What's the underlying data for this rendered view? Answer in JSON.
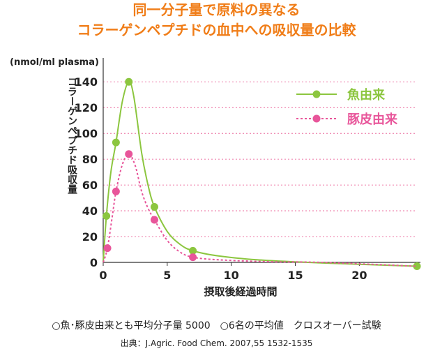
{
  "title_line1": "同一分子量で原料の異なる",
  "title_line2": "コラーゲンペプチドの血中への吸収量の比較",
  "footnote": "○魚･豚皮由来とも平均分子量 5000　○6名の平均値　クロスオーバー試験",
  "source": "出典：J.Agric. Food Chem. 2007,55 1532-1535",
  "colors": {
    "title": "#f07d18",
    "fish": "#8cc63f",
    "pig": "#e8559a",
    "grid": "#e84d8a",
    "axis": "#333333"
  },
  "chart_data": {
    "type": "line",
    "ylabel": "コラーゲンペプチド吸収量",
    "yunit": "(nmol/ml plasma)",
    "xlabel": "摂取後経過時間",
    "xlim": [
      0,
      24.5
    ],
    "ylim": [
      0,
      145
    ],
    "xticks": [
      0,
      5,
      10,
      15,
      20
    ],
    "yticks": [
      0,
      20,
      40,
      60,
      80,
      100,
      120,
      140
    ],
    "grid": true,
    "legend": "top-right",
    "series": [
      {
        "name": "魚由来",
        "color": "#8cc63f",
        "style": "solid",
        "points": [
          [
            0.25,
            36
          ],
          [
            1,
            93
          ],
          [
            2,
            140
          ],
          [
            4,
            43
          ],
          [
            7,
            9
          ],
          [
            24.5,
            -3
          ]
        ],
        "curve": [
          [
            0,
            0
          ],
          [
            0.25,
            36
          ],
          [
            0.6,
            70
          ],
          [
            1,
            93
          ],
          [
            1.5,
            125
          ],
          [
            2,
            140
          ],
          [
            2.4,
            128
          ],
          [
            3,
            85
          ],
          [
            3.5,
            60
          ],
          [
            4,
            43
          ],
          [
            5,
            24
          ],
          [
            6,
            14
          ],
          [
            7,
            9
          ],
          [
            9,
            5
          ],
          [
            12,
            2
          ],
          [
            16,
            0
          ],
          [
            20,
            -1.5
          ],
          [
            24.5,
            -3
          ]
        ]
      },
      {
        "name": "豚皮由来",
        "color": "#e8559a",
        "style": "dotted",
        "points": [
          [
            0.33,
            11
          ],
          [
            1,
            55
          ],
          [
            2,
            84
          ],
          [
            4,
            33
          ],
          [
            7,
            4
          ]
        ],
        "curve": [
          [
            0,
            0
          ],
          [
            0.33,
            11
          ],
          [
            0.7,
            35
          ],
          [
            1,
            55
          ],
          [
            1.5,
            76
          ],
          [
            2,
            84
          ],
          [
            2.5,
            75
          ],
          [
            3,
            55
          ],
          [
            3.5,
            42
          ],
          [
            4,
            33
          ],
          [
            5,
            17
          ],
          [
            6,
            8
          ],
          [
            7,
            4
          ],
          [
            9,
            2
          ],
          [
            13,
            0.5
          ],
          [
            17,
            0
          ],
          [
            24.5,
            -3
          ]
        ]
      }
    ]
  }
}
